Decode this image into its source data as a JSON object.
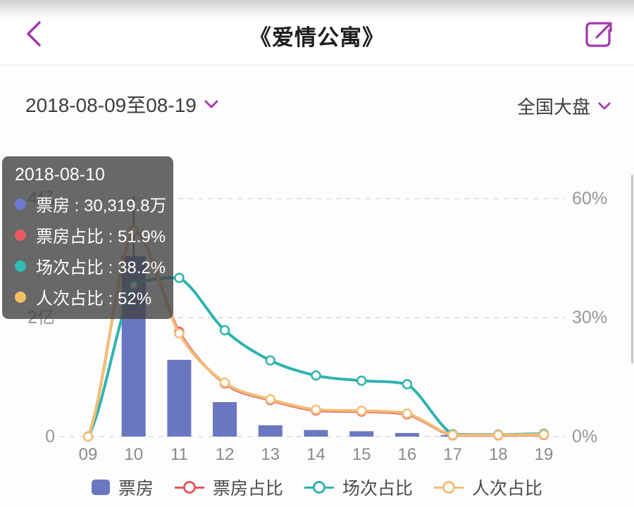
{
  "header": {
    "title": "《爱情公寓》"
  },
  "filters": {
    "date_range": "2018-08-09至08-19",
    "market": "全国大盘"
  },
  "tooltip": {
    "date": "2018-08-10",
    "rows": [
      {
        "label": "票房",
        "value": "30,319.8万",
        "color": "#6b79d0"
      },
      {
        "label": "票房占比",
        "value": "51.9%",
        "color": "#ea5a62"
      },
      {
        "label": "场次占比",
        "value": "38.2%",
        "color": "#2fbcb4"
      },
      {
        "label": "人次占比",
        "value": "52%",
        "color": "#f2c164"
      }
    ]
  },
  "legend": {
    "items": [
      {
        "label": "票房",
        "type": "bar",
        "color": "#6b76c1"
      },
      {
        "label": "票房占比",
        "type": "line",
        "color": "#e2565e"
      },
      {
        "label": "场次占比",
        "type": "line",
        "color": "#2fb3ae"
      },
      {
        "label": "人次占比",
        "type": "line",
        "color": "#f2be78"
      }
    ]
  },
  "chart_data": {
    "type": "bar+line",
    "categories": [
      "09",
      "10",
      "11",
      "12",
      "13",
      "14",
      "15",
      "16",
      "17",
      "18",
      "19"
    ],
    "highlighted_category": "10",
    "series": [
      {
        "name": "票房",
        "type": "bar",
        "axis": "left",
        "unit": "万",
        "color": "#6b76c1",
        "values": [
          0,
          30319.8,
          12900,
          5800,
          1900,
          1100,
          900,
          600,
          250,
          0,
          0
        ]
      },
      {
        "name": "票房占比",
        "type": "line",
        "axis": "right",
        "unit": "%",
        "color": "#e2565e",
        "values": [
          0,
          51.9,
          26.4,
          13.4,
          9.2,
          6.6,
          6.3,
          5.6,
          0.3,
          0.3,
          0.4
        ]
      },
      {
        "name": "场次占比",
        "type": "line",
        "axis": "right",
        "unit": "%",
        "color": "#2fb3ae",
        "values": [
          0,
          38.2,
          40.0,
          26.8,
          19.2,
          15.4,
          14.1,
          13.2,
          0.6,
          0.5,
          0.7
        ]
      },
      {
        "name": "人次占比",
        "type": "line",
        "axis": "right",
        "unit": "%",
        "color": "#f2be78",
        "values": [
          0,
          52,
          26.0,
          13.6,
          9.4,
          6.8,
          6.5,
          5.8,
          0.4,
          0.4,
          0.5
        ]
      }
    ],
    "left_axis": {
      "range": [
        0,
        40000
      ],
      "ticks": [
        {
          "v": 0,
          "label": "0"
        },
        {
          "v": 20000,
          "label": "2亿"
        },
        {
          "v": 40000,
          "label": "4亿"
        }
      ]
    },
    "right_axis": {
      "range": [
        0,
        60
      ],
      "ticks": [
        {
          "v": 0,
          "label": "0%"
        },
        {
          "v": 30,
          "label": "30%"
        },
        {
          "v": 60,
          "label": "60%"
        }
      ]
    },
    "grid": "dashed-horizontal"
  },
  "colors": {
    "accent_purple": "#a238ae",
    "axis_text": "#979797",
    "grid_line": "#d9d9d9",
    "indicator_line": "#5d5d5d"
  }
}
